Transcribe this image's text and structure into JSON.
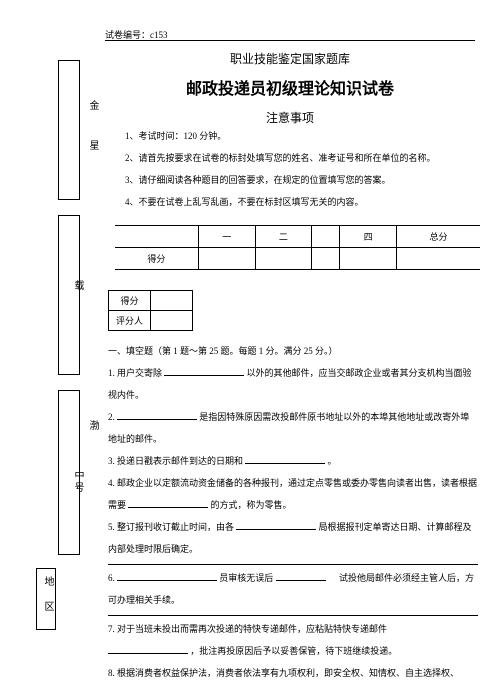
{
  "page_id": "试卷编号：c153",
  "header": {
    "supertitle": "职业技能鉴定国家题库",
    "title": "邮政投递员初级理论知识试卷",
    "subtitle": "注意事项"
  },
  "margin": {
    "mt1": "金",
    "mt2": "星",
    "mt3": "载",
    "mt4": "渤",
    "mt5": "中号",
    "mt6": "地 区"
  },
  "instructions": {
    "i1": "1、考试时间：120 分钟。",
    "i2": "2、请首先按要求在试卷的标封处填写您的姓名、准考证号和所在单位的名称。",
    "i3": "3、请仔细阅读各种题目的回答要求，在规定的位置填写您的答案。",
    "i4": "4、不要在试卷上乱写乱画，不要在标封区填写无关的内容。"
  },
  "table1": {
    "r1c0": "",
    "r1c1": "一",
    "r1c2": "二",
    "r1c3": "",
    "r1c4": "四",
    "r1c5": "总分",
    "r2c0": "得分"
  },
  "table2": {
    "r1c0": "得分",
    "r2c0": "评分人"
  },
  "section_header": "一、填空题（第 1 题～第 25 题。每题 1 分。满分 25 分。）",
  "questions": {
    "q1_a": "1. 用户交寄除",
    "q1_b": "以外的其他邮件，应当交邮政企业或者其分支机构当面验视内件。",
    "q2_a": "2.",
    "q2_b": "是指因特殊原因需改投邮件原书地址以外的本埠其他地址或改寄外埠地址的邮件。",
    "q3": "3. 投递日戳表示邮件到达的日期和",
    "q3_b": "。",
    "q4_a": "4. 邮政企业以定额流动资金储备的各种报刊，通过定点零售或委办零售向读者出售，读者根据需要",
    "q4_b": "的方式，称为零售。",
    "q5_a": "5. 整订报刊收订截止时间，由各",
    "q5_b": "局根据报刊定单寄达日期、计算邮程及内部处理时限后确定。",
    "q6_a": "6.",
    "q6_b": "员审核无误后",
    "q6_c": "试投他局邮件必须经主管人后，方可办理相关手续。",
    "q7_a": "7. 对于当班未投出而需再次投递的特快专递邮件，应粘贴特快专递邮件",
    "q7_b": "，批注再投原因后予以妥善保管，待下班继续投递。",
    "q8": "8. 根据消费者权益保护法，消费者依法享有九项权利，即安全权、知情权、自主选择权、"
  }
}
